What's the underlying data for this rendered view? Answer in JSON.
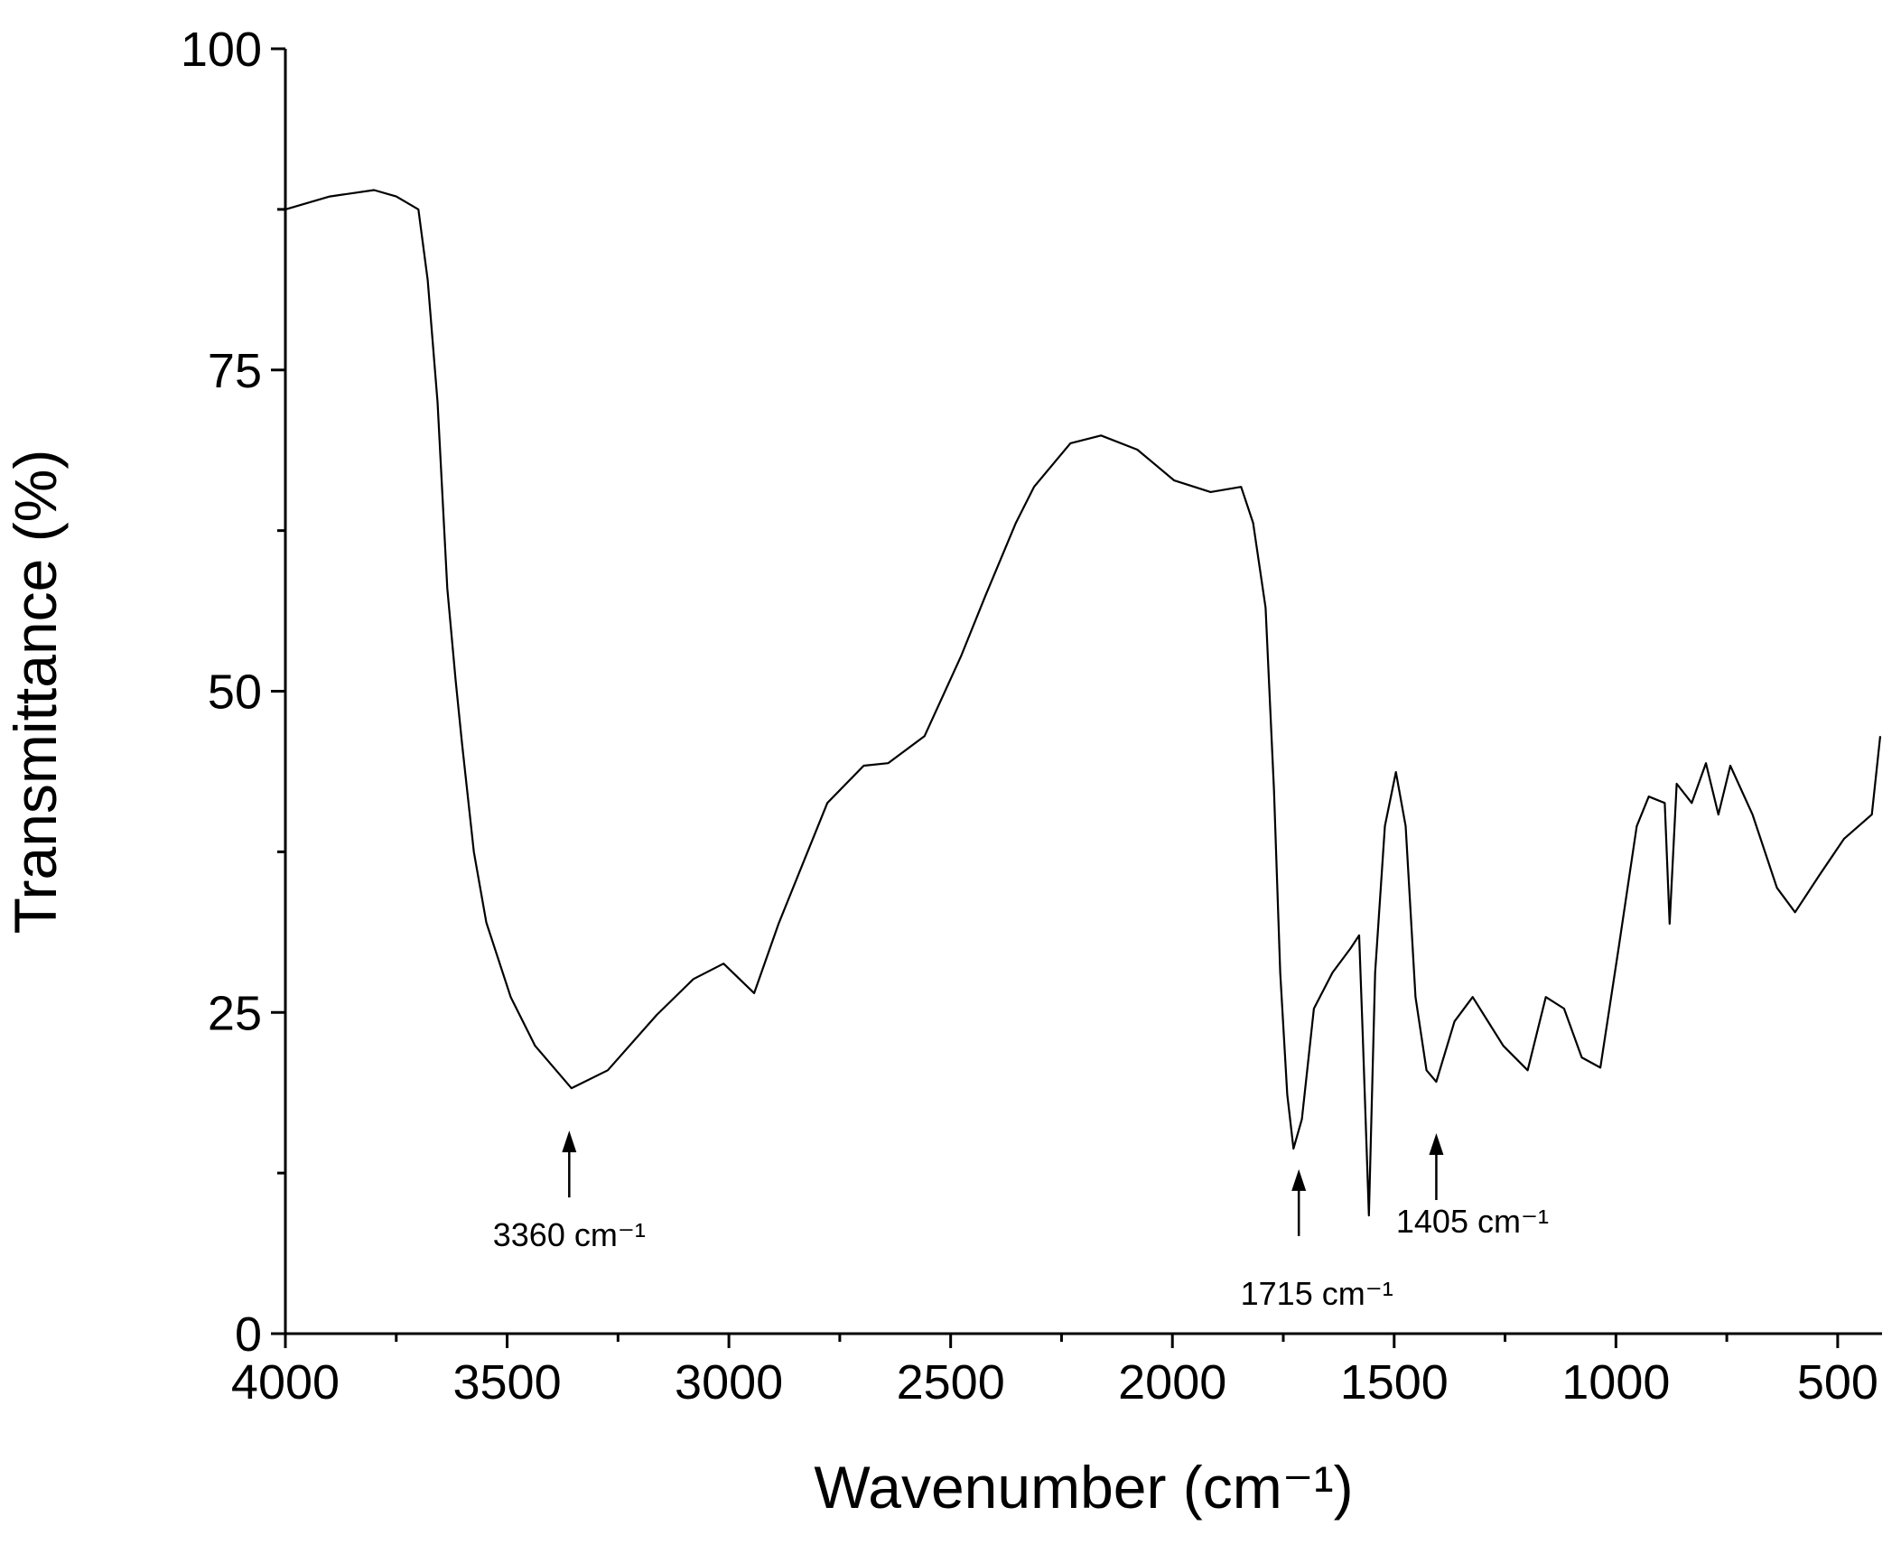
{
  "chart_data": {
    "type": "line",
    "x_label": "Wavenumber (cm⁻¹)",
    "y_label": "Transmittance (%)",
    "xlim": [
      4000,
      400
    ],
    "ylim": [
      0,
      100
    ],
    "xticks": [
      4000,
      3500,
      3000,
      2500,
      2000,
      1500,
      1000,
      500
    ],
    "xminorticks": [
      3750,
      3250,
      2750,
      2250,
      1750,
      1250,
      750
    ],
    "yticks": [
      0,
      25,
      50,
      75,
      100
    ],
    "yminorticks": [
      12.5,
      37.5,
      62.5,
      87.5
    ],
    "grid": false,
    "series": [
      {
        "color": "#000000",
        "x": [
          4000,
          3900,
          3800,
          3750,
          3700,
          3679,
          3657,
          3635,
          3616,
          3602,
          3575,
          3547,
          3492,
          3437,
          3355,
          3273,
          3163,
          3080,
          3012,
          2943,
          2888,
          2778,
          2696,
          2641,
          2559,
          2477,
          2422,
          2353,
          2312,
          2230,
          2161,
          2079,
          1996,
          1914,
          1845,
          1818,
          1790,
          1771,
          1757,
          1741,
          1727,
          1708,
          1681,
          1639,
          1598,
          1579,
          1571,
          1557,
          1543,
          1521,
          1496,
          1474,
          1452,
          1427,
          1405,
          1364,
          1323,
          1254,
          1199,
          1158,
          1117,
          1077,
          1035,
          994,
          953,
          926,
          890,
          879,
          863,
          829,
          797,
          769,
          742,
          692,
          637,
          596,
          541,
          486,
          423,
          404
        ],
        "values": [
          87.5,
          88.5,
          89,
          88.5,
          87.5,
          82,
          72.5,
          58,
          50.8,
          46,
          37.5,
          32,
          26.2,
          22.4,
          19.1,
          20.5,
          24.8,
          27.6,
          28.8,
          26.5,
          31.9,
          41.3,
          44.2,
          44.4,
          46.5,
          52.7,
          57.4,
          63.1,
          65.9,
          69.3,
          69.9,
          68.8,
          66.4,
          65.5,
          65.9,
          63.1,
          56.5,
          42.3,
          28.1,
          18.6,
          14.4,
          16.7,
          25.3,
          28.1,
          30,
          31,
          23.4,
          9.2,
          28.1,
          39.5,
          43.7,
          39.5,
          26.2,
          20.5,
          19.6,
          24.3,
          26.2,
          22.4,
          20.5,
          26.2,
          25.3,
          21.5,
          20.7,
          30,
          39.5,
          41.8,
          41.3,
          31.9,
          42.8,
          41.3,
          44.4,
          40.4,
          44.2,
          40.4,
          34.7,
          32.8,
          35.7,
          38.5,
          40.4,
          46.5
        ]
      }
    ],
    "annotations": [
      {
        "text": "3360 cm⁻¹",
        "x": 3360,
        "y": 15.8
      },
      {
        "text": "1715 cm⁻¹",
        "x": 1715,
        "y": 12.8
      },
      {
        "text": "1405 cm⁻¹",
        "x": 1405,
        "y": 15.6
      }
    ]
  }
}
